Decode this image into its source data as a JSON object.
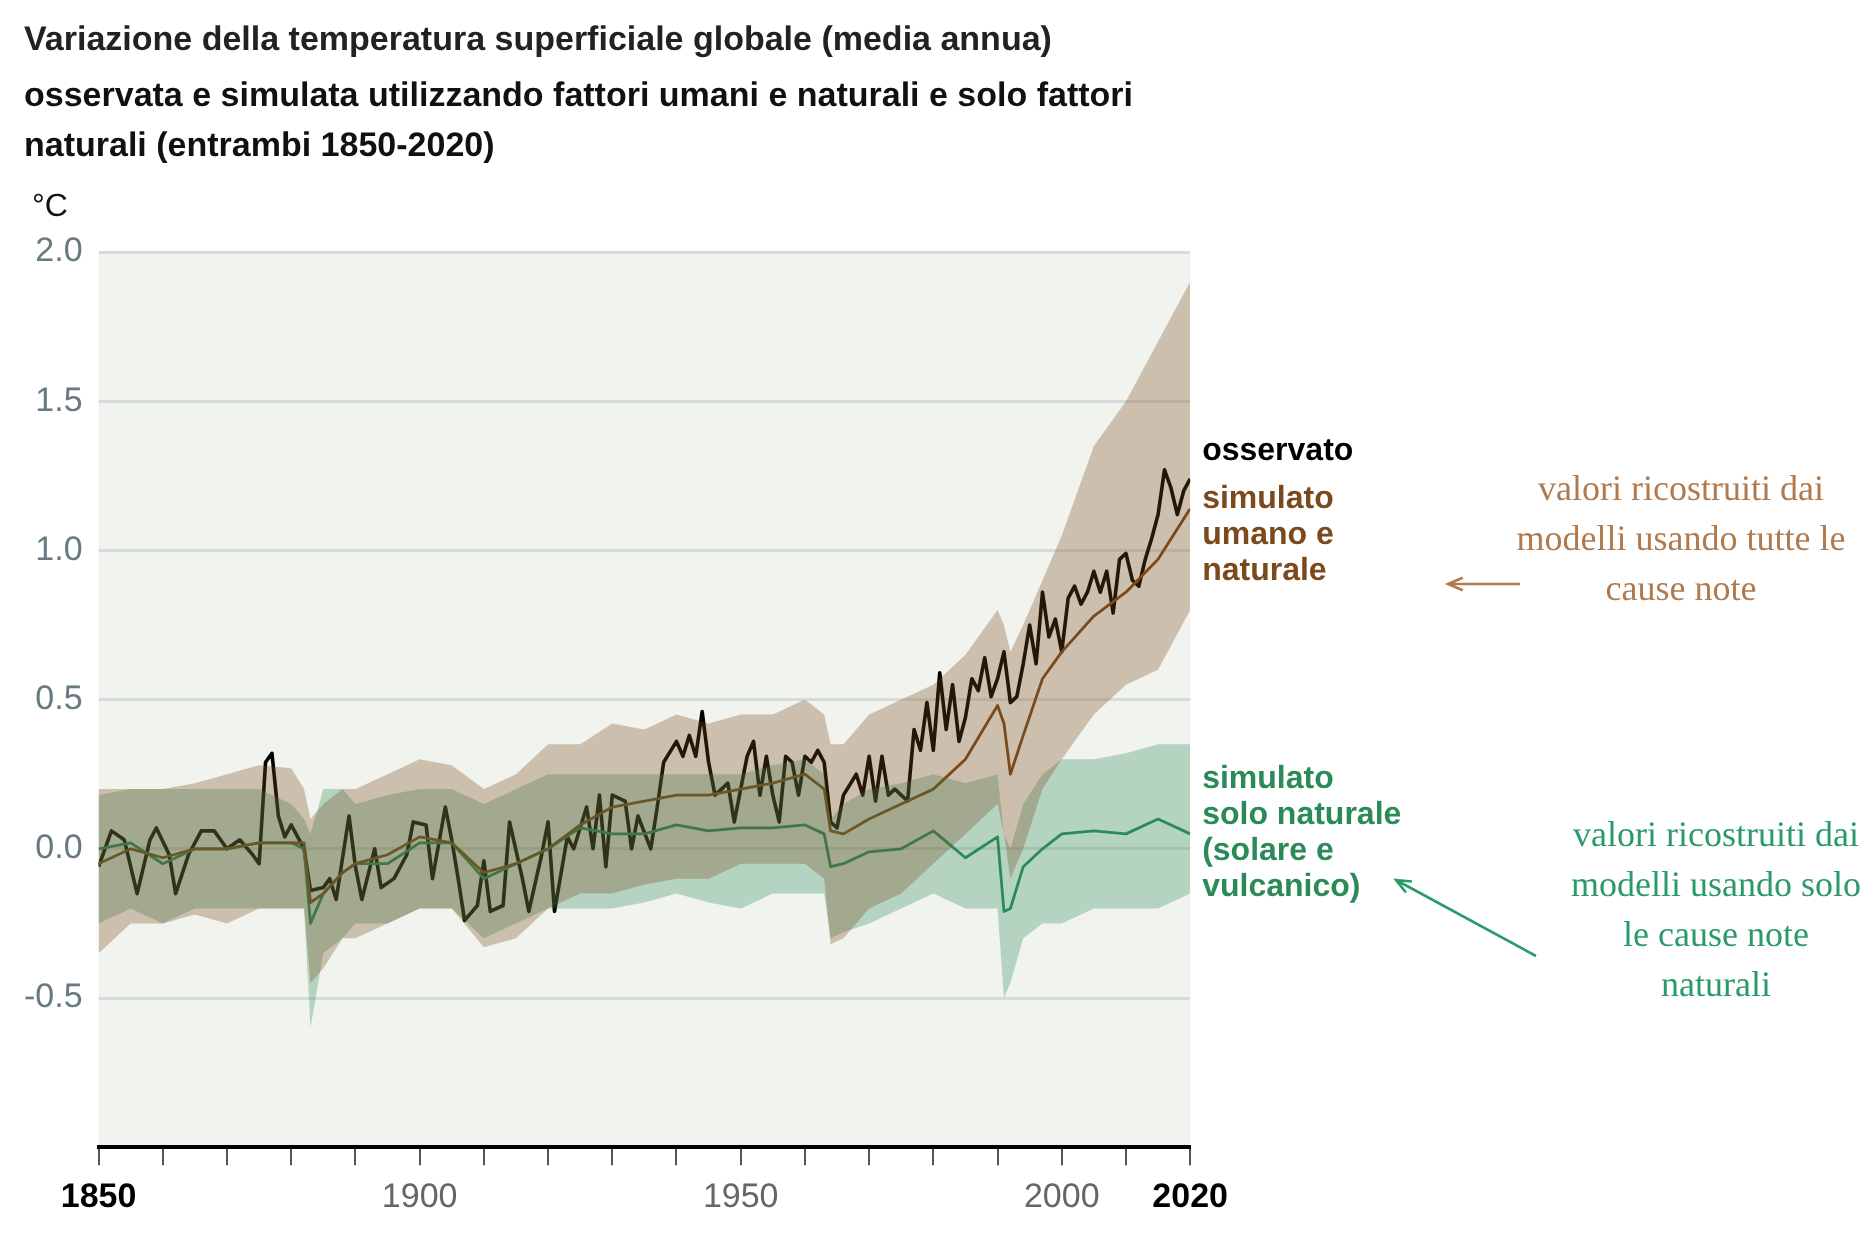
{
  "chart_data": {
    "type": "line",
    "title": "Variazione della temperatura superficiale globale (media annua)",
    "subtitle": "osservata e simulata utilizzando fattori umani e naturali e solo fattori naturali (entrambi 1850-2020)",
    "ylabel": "°C",
    "xlim": [
      1850,
      2020
    ],
    "xticks": [
      1850,
      {
        "value": 1860,
        "label": null
      },
      {
        "value": 1870,
        "label": null
      },
      {
        "value": 1880,
        "label": null
      },
      {
        "value": 1890,
        "label": null
      },
      1900,
      {
        "value": 1910,
        "label": null
      },
      {
        "value": 1920,
        "label": null
      },
      {
        "value": 1930,
        "label": null
      },
      {
        "value": 1940,
        "label": null
      },
      1950,
      {
        "value": 1960,
        "label": null
      },
      {
        "value": 1970,
        "label": null
      },
      {
        "value": 1980,
        "label": null
      },
      {
        "value": 1990,
        "label": null
      },
      2000,
      {
        "value": 2010,
        "label": null
      },
      2020
    ],
    "ylim": [
      -1,
      2
    ],
    "yticks": [
      {
        "value": -0.5,
        "label": "-0.5"
      },
      {
        "value": 0,
        "label": "0.0"
      },
      {
        "value": 0.5,
        "label": "0.5"
      },
      {
        "value": 1,
        "label": "1.0"
      },
      {
        "value": 1.5,
        "label": "1.5"
      },
      {
        "value": 2,
        "label": "2.0"
      }
    ],
    "grid": "y",
    "legend": false,
    "marker": "none",
    "line_style": "solid",
    "series": [
      {
        "name": "simulato\numano e\nnaturale",
        "color": "#7a4a1c",
        "x": [
          1850,
          1855,
          1860,
          1865,
          1870,
          1875,
          1880,
          1882,
          1883,
          1885,
          1888,
          1890,
          1895,
          1900,
          1905,
          1910,
          1915,
          1920,
          1925,
          1930,
          1935,
          1940,
          1945,
          1950,
          1955,
          1960,
          1963,
          1964,
          1966,
          1970,
          1975,
          1980,
          1985,
          1990,
          1991,
          1992,
          1994,
          1997,
          2000,
          2005,
          2010,
          2015,
          2020
        ],
        "values": [
          -0.05,
          0.0,
          -0.03,
          0.0,
          0.0,
          0.02,
          0.02,
          0.02,
          -0.18,
          -0.15,
          -0.08,
          -0.05,
          -0.02,
          0.04,
          0.02,
          -0.08,
          -0.05,
          0.0,
          0.08,
          0.14,
          0.16,
          0.18,
          0.18,
          0.2,
          0.22,
          0.25,
          0.2,
          0.06,
          0.05,
          0.1,
          0.15,
          0.2,
          0.3,
          0.48,
          0.42,
          0.25,
          0.38,
          0.57,
          0.66,
          0.78,
          0.86,
          0.97,
          1.14
        ],
        "upper": [
          0.2,
          0.2,
          0.2,
          0.22,
          0.25,
          0.28,
          0.27,
          0.2,
          0.1,
          0.15,
          0.2,
          0.2,
          0.25,
          0.3,
          0.28,
          0.2,
          0.25,
          0.35,
          0.35,
          0.42,
          0.4,
          0.45,
          0.42,
          0.45,
          0.45,
          0.5,
          0.45,
          0.35,
          0.35,
          0.45,
          0.5,
          0.55,
          0.65,
          0.8,
          0.75,
          0.66,
          0.75,
          0.9,
          1.05,
          1.35,
          1.5,
          1.7,
          1.9
        ],
        "lower": [
          -0.35,
          -0.25,
          -0.25,
          -0.22,
          -0.25,
          -0.2,
          -0.2,
          -0.2,
          -0.45,
          -0.4,
          -0.3,
          -0.3,
          -0.25,
          -0.2,
          -0.2,
          -0.33,
          -0.3,
          -0.2,
          -0.15,
          -0.15,
          -0.12,
          -0.1,
          -0.1,
          -0.05,
          -0.05,
          -0.05,
          -0.1,
          -0.32,
          -0.3,
          -0.2,
          -0.15,
          -0.05,
          0.05,
          0.15,
          0.05,
          -0.1,
          0.0,
          0.2,
          0.3,
          0.45,
          0.55,
          0.6,
          0.8
        ]
      },
      {
        "name": "simulato\nsolo naturale\n(solare e\nvulcanico)",
        "color": "#2a8a58",
        "x": [
          1850,
          1855,
          1860,
          1865,
          1870,
          1875,
          1880,
          1882,
          1883,
          1885,
          1888,
          1890,
          1895,
          1900,
          1905,
          1910,
          1915,
          1920,
          1925,
          1930,
          1935,
          1940,
          1945,
          1950,
          1955,
          1960,
          1963,
          1964,
          1966,
          1970,
          1975,
          1980,
          1985,
          1990,
          1991,
          1992,
          1994,
          1997,
          2000,
          2005,
          2010,
          2015,
          2020
        ],
        "values": [
          0.0,
          0.02,
          -0.05,
          0.0,
          0.0,
          0.02,
          0.02,
          0.0,
          -0.25,
          -0.15,
          -0.08,
          -0.05,
          -0.05,
          0.02,
          0.02,
          -0.1,
          -0.05,
          0.0,
          0.07,
          0.05,
          0.05,
          0.08,
          0.06,
          0.07,
          0.07,
          0.08,
          0.05,
          -0.06,
          -0.05,
          -0.01,
          0.0,
          0.06,
          -0.03,
          0.04,
          -0.21,
          -0.2,
          -0.06,
          0.0,
          0.05,
          0.06,
          0.05,
          0.1,
          0.05
        ],
        "upper": [
          0.18,
          0.2,
          0.2,
          0.2,
          0.2,
          0.2,
          0.15,
          0.1,
          0.05,
          0.2,
          0.2,
          0.15,
          0.18,
          0.2,
          0.2,
          0.15,
          0.2,
          0.25,
          0.25,
          0.25,
          0.25,
          0.25,
          0.25,
          0.25,
          0.28,
          0.3,
          0.25,
          0.1,
          0.15,
          0.2,
          0.22,
          0.25,
          0.22,
          0.25,
          0.05,
          0.0,
          0.15,
          0.25,
          0.3,
          0.3,
          0.32,
          0.35,
          0.35
        ],
        "lower": [
          -0.25,
          -0.2,
          -0.25,
          -0.2,
          -0.2,
          -0.2,
          -0.2,
          -0.2,
          -0.6,
          -0.35,
          -0.3,
          -0.25,
          -0.25,
          -0.2,
          -0.2,
          -0.3,
          -0.25,
          -0.2,
          -0.2,
          -0.2,
          -0.18,
          -0.15,
          -0.18,
          -0.2,
          -0.15,
          -0.15,
          -0.15,
          -0.3,
          -0.28,
          -0.25,
          -0.2,
          -0.15,
          -0.2,
          -0.2,
          -0.5,
          -0.45,
          -0.3,
          -0.25,
          -0.25,
          -0.2,
          -0.2,
          -0.2,
          -0.15
        ]
      },
      {
        "name": "osservato",
        "color": "#000000",
        "x": [
          1850,
          1852,
          1854,
          1856,
          1858,
          1859,
          1861,
          1862,
          1864,
          1866,
          1868,
          1870,
          1872,
          1874,
          1875,
          1876,
          1877,
          1878,
          1879,
          1880,
          1882,
          1883,
          1885,
          1886,
          1887,
          1889,
          1890,
          1891,
          1893,
          1894,
          1896,
          1898,
          1899,
          1901,
          1902,
          1904,
          1905,
          1906,
          1907,
          1909,
          1910,
          1911,
          1913,
          1914,
          1916,
          1917,
          1919,
          1920,
          1921,
          1923,
          1924,
          1926,
          1927,
          1928,
          1929,
          1930,
          1932,
          1933,
          1934,
          1936,
          1937,
          1938,
          1940,
          1941,
          1942,
          1943,
          1944,
          1945,
          1946,
          1948,
          1949,
          1950,
          1951,
          1952,
          1953,
          1954,
          1955,
          1956,
          1957,
          1958,
          1959,
          1960,
          1961,
          1962,
          1963,
          1964,
          1965,
          1966,
          1968,
          1969,
          1970,
          1971,
          1972,
          1973,
          1974,
          1975,
          1976,
          1977,
          1978,
          1979,
          1980,
          1981,
          1982,
          1983,
          1984,
          1985,
          1986,
          1987,
          1988,
          1989,
          1990,
          1991,
          1992,
          1993,
          1994,
          1995,
          1996,
          1997,
          1998,
          1999,
          2000,
          2001,
          2002,
          2003,
          2004,
          2005,
          2006,
          2007,
          2008,
          2009,
          2010,
          2011,
          2012,
          2013,
          2014,
          2015,
          2016,
          2017,
          2018,
          2019,
          2020
        ],
        "values": [
          -0.06,
          0.06,
          0.03,
          -0.15,
          0.03,
          0.07,
          -0.02,
          -0.15,
          -0.02,
          0.06,
          0.06,
          0.0,
          0.03,
          -0.02,
          -0.05,
          0.29,
          0.32,
          0.11,
          0.04,
          0.08,
          0.0,
          -0.14,
          -0.13,
          -0.1,
          -0.17,
          0.11,
          -0.06,
          -0.17,
          0.0,
          -0.13,
          -0.1,
          -0.02,
          0.09,
          0.08,
          -0.1,
          0.14,
          0.03,
          -0.1,
          -0.24,
          -0.19,
          -0.04,
          -0.21,
          -0.19,
          0.09,
          -0.1,
          -0.21,
          -0.02,
          0.09,
          -0.21,
          0.04,
          0.0,
          0.14,
          0.0,
          0.18,
          -0.06,
          0.18,
          0.16,
          0.0,
          0.11,
          0.0,
          0.14,
          0.29,
          0.36,
          0.31,
          0.38,
          0.31,
          0.46,
          0.29,
          0.18,
          0.22,
          0.09,
          0.2,
          0.31,
          0.36,
          0.18,
          0.31,
          0.18,
          0.09,
          0.31,
          0.29,
          0.18,
          0.31,
          0.29,
          0.33,
          0.29,
          0.09,
          0.07,
          0.18,
          0.25,
          0.18,
          0.31,
          0.16,
          0.31,
          0.18,
          0.2,
          0.18,
          0.16,
          0.4,
          0.33,
          0.49,
          0.33,
          0.59,
          0.4,
          0.55,
          0.36,
          0.44,
          0.57,
          0.53,
          0.64,
          0.51,
          0.57,
          0.66,
          0.49,
          0.51,
          0.62,
          0.75,
          0.62,
          0.86,
          0.71,
          0.77,
          0.66,
          0.84,
          0.88,
          0.82,
          0.86,
          0.93,
          0.86,
          0.93,
          0.79,
          0.97,
          0.99,
          0.9,
          0.88,
          0.97,
          1.04,
          1.12,
          1.27,
          1.21,
          1.12,
          1.2,
          1.24
        ]
      }
    ],
    "annotations": [
      "valori ricostruiti dai modelli usando tutte le cause note",
      "valori ricostruiti dai modelli usando solo le cause note naturali"
    ]
  }
}
